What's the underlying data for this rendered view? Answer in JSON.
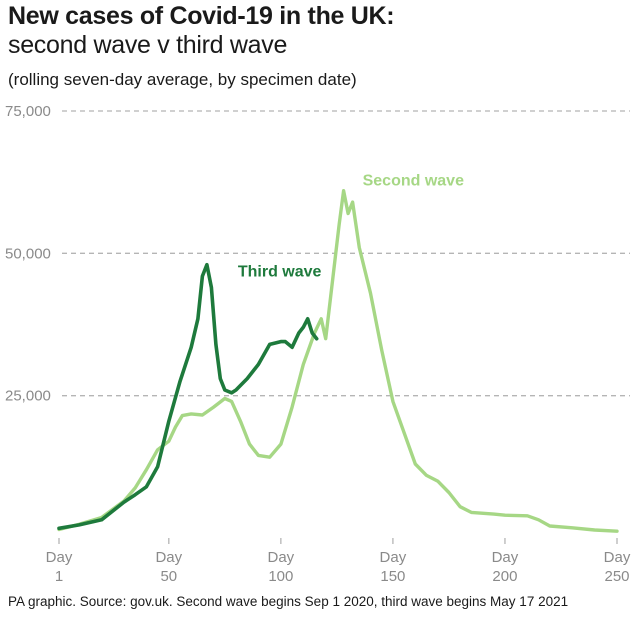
{
  "header": {
    "title": "New cases of Covid-19 in the UK:",
    "subtitle": "second wave v third wave",
    "note": "(rolling seven-day average, by specimen date)"
  },
  "footer": {
    "source": "PA graphic. Source: gov.uk. Second wave begins Sep 1 2020, third wave begins May 17 2021"
  },
  "colors": {
    "second_wave": "#a6d785",
    "third_wave": "#1e7a3c",
    "grid": "#b5b5b5",
    "axis_text": "#8a8a8a"
  },
  "chart_data": {
    "type": "line",
    "title": "New cases of Covid-19 in the UK:",
    "subtitle": "second wave v third wave",
    "xlim": [
      1,
      250
    ],
    "ylim": [
      0,
      75000
    ],
    "y_ticks": [
      {
        "value": 25000,
        "label": "25,000"
      },
      {
        "value": 50000,
        "label": "50,000"
      },
      {
        "value": 75000,
        "label": "75,000"
      }
    ],
    "x_ticks": [
      {
        "value": 1,
        "line1": "Day",
        "line2": "1"
      },
      {
        "value": 50,
        "line1": "Day",
        "line2": "50"
      },
      {
        "value": 100,
        "line1": "Day",
        "line2": "100"
      },
      {
        "value": 150,
        "line1": "Day",
        "line2": "150"
      },
      {
        "value": 200,
        "line1": "Day",
        "line2": "200"
      },
      {
        "value": 250,
        "line1": "Day",
        "line2": "250"
      }
    ],
    "grid": "horizontal dashed",
    "series": [
      {
        "name": "Second wave",
        "color": "#a6d785",
        "label_near_day": 128,
        "points": [
          [
            1,
            1500
          ],
          [
            10,
            2400
          ],
          [
            20,
            3600
          ],
          [
            30,
            6500
          ],
          [
            35,
            8800
          ],
          [
            40,
            12000
          ],
          [
            45,
            15500
          ],
          [
            50,
            17000
          ],
          [
            53,
            19500
          ],
          [
            56,
            21500
          ],
          [
            60,
            21800
          ],
          [
            65,
            21600
          ],
          [
            70,
            23000
          ],
          [
            75,
            24500
          ],
          [
            78,
            24000
          ],
          [
            82,
            20500
          ],
          [
            86,
            16500
          ],
          [
            90,
            14500
          ],
          [
            95,
            14200
          ],
          [
            100,
            16500
          ],
          [
            105,
            23000
          ],
          [
            110,
            30500
          ],
          [
            115,
            36000
          ],
          [
            118,
            38500
          ],
          [
            120,
            35000
          ],
          [
            123,
            45000
          ],
          [
            126,
            55000
          ],
          [
            128,
            61000
          ],
          [
            130,
            57000
          ],
          [
            132,
            59000
          ],
          [
            135,
            51000
          ],
          [
            140,
            43000
          ],
          [
            145,
            33000
          ],
          [
            150,
            24000
          ],
          [
            155,
            18500
          ],
          [
            160,
            13000
          ],
          [
            165,
            11000
          ],
          [
            170,
            10000
          ],
          [
            175,
            8000
          ],
          [
            180,
            5500
          ],
          [
            185,
            4500
          ],
          [
            195,
            4200
          ],
          [
            200,
            4000
          ],
          [
            210,
            3900
          ],
          [
            215,
            3200
          ],
          [
            220,
            2100
          ],
          [
            230,
            1800
          ],
          [
            240,
            1400
          ],
          [
            250,
            1200
          ]
        ]
      },
      {
        "name": "Third wave",
        "color": "#1e7a3c",
        "label_near_day": 71,
        "points": [
          [
            1,
            1700
          ],
          [
            10,
            2300
          ],
          [
            20,
            3200
          ],
          [
            30,
            6300
          ],
          [
            35,
            7600
          ],
          [
            40,
            9000
          ],
          [
            45,
            12500
          ],
          [
            50,
            20500
          ],
          [
            55,
            27500
          ],
          [
            60,
            33500
          ],
          [
            63,
            38500
          ],
          [
            65,
            46000
          ],
          [
            67,
            48000
          ],
          [
            69,
            44000
          ],
          [
            71,
            34000
          ],
          [
            73,
            28000
          ],
          [
            75,
            26000
          ],
          [
            78,
            25500
          ],
          [
            80,
            26000
          ],
          [
            85,
            28000
          ],
          [
            90,
            30500
          ],
          [
            95,
            34000
          ],
          [
            100,
            34500
          ],
          [
            102,
            34500
          ],
          [
            105,
            33500
          ],
          [
            108,
            36000
          ],
          [
            110,
            37000
          ],
          [
            112,
            38500
          ],
          [
            114,
            36000
          ],
          [
            116,
            35000
          ]
        ]
      }
    ]
  }
}
